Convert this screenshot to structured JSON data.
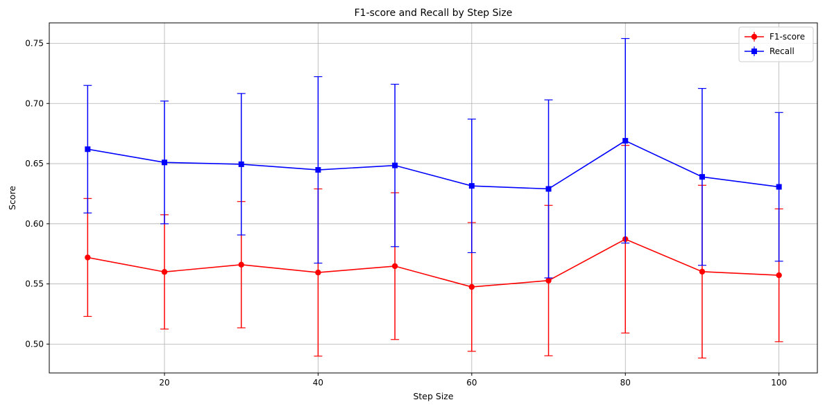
{
  "chart_data": {
    "type": "line",
    "title": "F1-score and Recall by Step Size",
    "xlabel": "Step Size",
    "ylabel": "Score",
    "xlim": [
      5,
      105
    ],
    "ylim": [
      0.476,
      0.767
    ],
    "xticks": [
      20,
      40,
      60,
      80,
      100
    ],
    "yticks": [
      0.5,
      0.55,
      0.6,
      0.65,
      0.7,
      0.75
    ],
    "ytick_labels": [
      "0.50",
      "0.55",
      "0.60",
      "0.65",
      "0.70",
      "0.75"
    ],
    "grid": true,
    "legend_position": "top-right",
    "x": [
      10,
      20,
      30,
      40,
      50,
      60,
      70,
      80,
      90,
      100
    ],
    "series": [
      {
        "name": "F1-score",
        "color": "#ff0000",
        "marker": "circle",
        "values": [
          0.572,
          0.56,
          0.566,
          0.5595,
          0.5648,
          0.5475,
          0.5528,
          0.5872,
          0.5602,
          0.5572
        ],
        "error": [
          0.049,
          0.0475,
          0.0525,
          0.0695,
          0.061,
          0.0535,
          0.0625,
          0.078,
          0.0718,
          0.0552
        ]
      },
      {
        "name": "Recall",
        "color": "#0000ff",
        "marker": "square",
        "values": [
          0.662,
          0.651,
          0.6495,
          0.6448,
          0.6485,
          0.6315,
          0.629,
          0.669,
          0.639,
          0.6307
        ],
        "error": [
          0.053,
          0.051,
          0.0588,
          0.0775,
          0.0675,
          0.0555,
          0.074,
          0.085,
          0.0735,
          0.0618
        ]
      }
    ]
  }
}
